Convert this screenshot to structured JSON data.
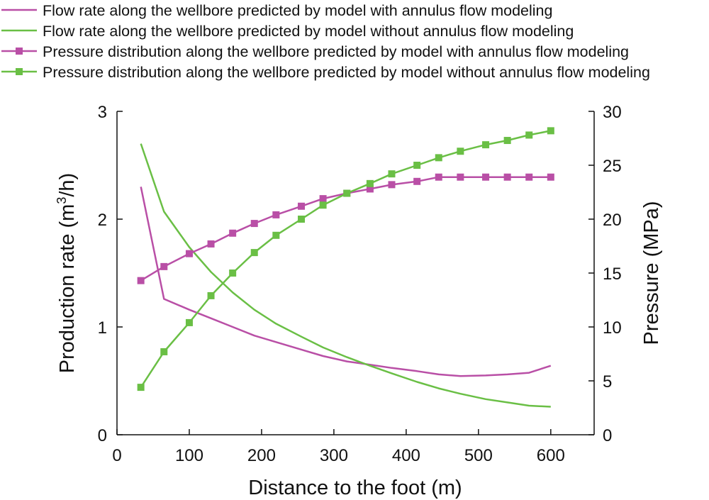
{
  "chart_data": {
    "type": "line",
    "title": "",
    "xlabel": "Distance to the foot (m)",
    "ylabel_left": {
      "prefix": "Production rate (m",
      "sup": "3",
      "suffix": "/h)"
    },
    "ylabel_right": "Pressure (MPa)",
    "xlim": [
      0,
      660
    ],
    "ylim_left": [
      0,
      3
    ],
    "ylim_right": [
      0,
      30
    ],
    "x_ticks": [
      0,
      100,
      200,
      300,
      400,
      500,
      600
    ],
    "y_left_ticks": [
      0,
      1,
      2,
      3
    ],
    "y_right_ticks": [
      0,
      5,
      10,
      15,
      20,
      25,
      30
    ],
    "legend_position": "top-left",
    "series": [
      {
        "name": "Flow rate along the wellbore predicted by model with annulus flow modeling",
        "axis": "left",
        "color": "#b94fa6",
        "marker": false,
        "x": [
          33,
          65,
          100,
          130,
          160,
          190,
          220,
          255,
          285,
          318,
          350,
          380,
          415,
          445,
          475,
          510,
          540,
          570,
          600
        ],
        "y": [
          2.3,
          1.26,
          1.16,
          1.08,
          1.0,
          0.92,
          0.86,
          0.79,
          0.73,
          0.68,
          0.65,
          0.62,
          0.59,
          0.56,
          0.545,
          0.55,
          0.56,
          0.575,
          0.64
        ]
      },
      {
        "name": "Flow rate along the wellbore predicted by model without annulus flow modeling",
        "axis": "left",
        "color": "#6abf45",
        "marker": false,
        "x": [
          33,
          65,
          100,
          130,
          160,
          190,
          220,
          255,
          285,
          318,
          350,
          380,
          415,
          445,
          475,
          510,
          540,
          570,
          600
        ],
        "y": [
          2.7,
          2.07,
          1.74,
          1.51,
          1.32,
          1.16,
          1.03,
          0.91,
          0.81,
          0.72,
          0.64,
          0.57,
          0.49,
          0.43,
          0.38,
          0.33,
          0.3,
          0.27,
          0.26
        ]
      },
      {
        "name": "Pressure distribution along the wellbore predicted by model with annulus flow modeling",
        "axis": "right",
        "color": "#b94fa6",
        "marker": true,
        "x": [
          33,
          65,
          100,
          130,
          160,
          190,
          220,
          255,
          285,
          318,
          350,
          380,
          415,
          445,
          475,
          510,
          540,
          570,
          600
        ],
        "y": [
          14.3,
          15.6,
          16.8,
          17.7,
          18.7,
          19.6,
          20.4,
          21.2,
          21.9,
          22.4,
          22.8,
          23.2,
          23.5,
          23.9,
          23.9,
          23.9,
          23.9,
          23.9,
          23.9
        ]
      },
      {
        "name": "Pressure distribution along the wellbore predicted by model without annulus flow modeling",
        "axis": "right",
        "color": "#6abf45",
        "marker": true,
        "x": [
          33,
          65,
          100,
          130,
          160,
          190,
          220,
          255,
          285,
          318,
          350,
          380,
          415,
          445,
          475,
          510,
          540,
          570,
          600
        ],
        "y": [
          4.4,
          7.7,
          10.4,
          12.9,
          15.0,
          16.9,
          18.5,
          20.0,
          21.3,
          22.4,
          23.3,
          24.2,
          25.0,
          25.7,
          26.3,
          26.9,
          27.3,
          27.8,
          28.2
        ]
      }
    ]
  }
}
